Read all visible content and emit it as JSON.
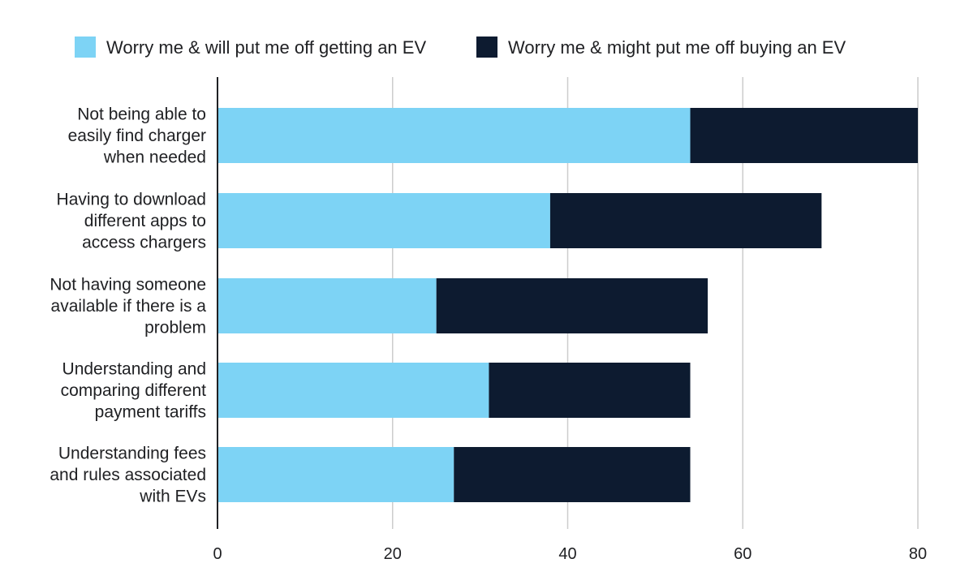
{
  "chart_data": {
    "type": "bar",
    "orientation": "horizontal",
    "stacked": true,
    "title": "",
    "xlabel": "",
    "ylabel": "",
    "xlim": [
      0,
      80
    ],
    "x_ticks": [
      0,
      20,
      40,
      60,
      80
    ],
    "grid": true,
    "legend_position": "top",
    "categories": [
      [
        "Not being able to",
        "easily find charger",
        "when needed"
      ],
      [
        "Having to download",
        "different apps to",
        "access chargers"
      ],
      [
        "Not having someone",
        "available if there is a",
        "problem"
      ],
      [
        "Understanding and",
        "comparing different",
        "payment tariffs"
      ],
      [
        "Understanding fees",
        "and rules associated",
        "with EVs"
      ]
    ],
    "series": [
      {
        "name": "Worry me & will put me off getting an EV",
        "color": "#7dd3f5",
        "values": [
          54,
          38,
          25,
          31,
          27
        ]
      },
      {
        "name": "Worry me & might put me off buying an EV",
        "color": "#0d1b30",
        "values": [
          26,
          31,
          31,
          23,
          27
        ]
      }
    ]
  }
}
